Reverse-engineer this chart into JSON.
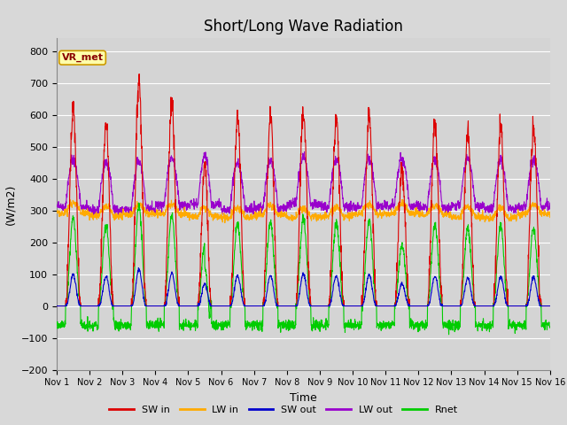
{
  "title": "Short/Long Wave Radiation",
  "xlabel": "Time",
  "ylabel": "(W/m2)",
  "ylim": [
    -200,
    840
  ],
  "yticks": [
    -200,
    -100,
    0,
    100,
    200,
    300,
    400,
    500,
    600,
    700,
    800
  ],
  "station_label": "VR_met",
  "n_days": 15,
  "colors": {
    "SW_in": "#dd0000",
    "LW_in": "#ffaa00",
    "SW_out": "#0000cc",
    "LW_out": "#9900cc",
    "Rnet": "#00cc00"
  },
  "legend_labels": [
    "SW in",
    "LW in",
    "SW out",
    "LW out",
    "Rnet"
  ],
  "background_color": "#d8d8d8",
  "plot_bg_color": "#d4d4d4",
  "grid_color": "#ffffff",
  "title_fontsize": 12,
  "label_fontsize": 9,
  "tick_fontsize": 8,
  "figsize": [
    6.4,
    4.8
  ],
  "dpi": 100
}
